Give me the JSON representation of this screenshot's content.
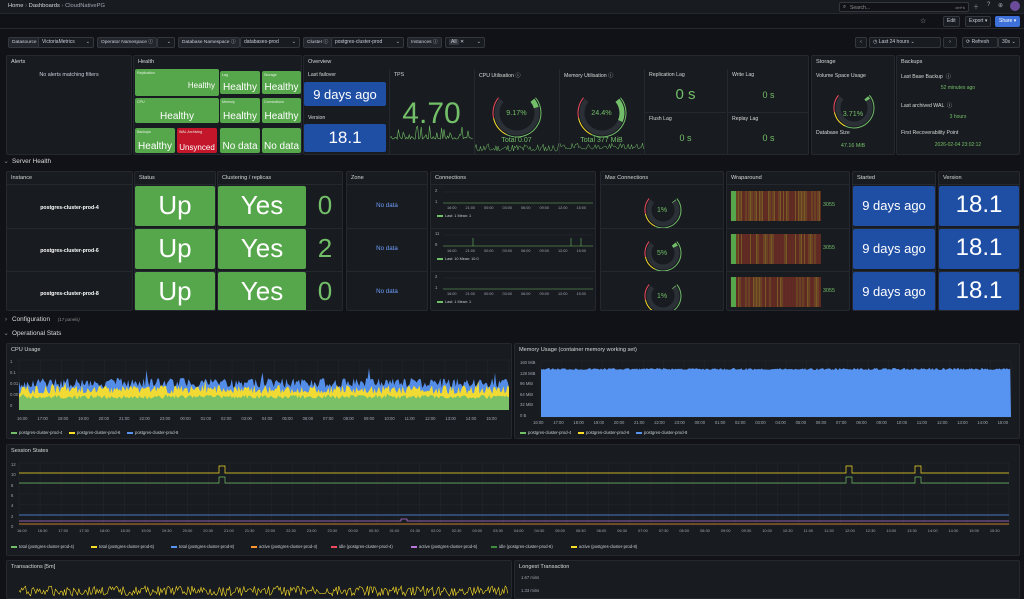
{
  "topbar": {
    "breadcrumb": [
      "Home",
      "Dashboards",
      "CloudNativePG"
    ],
    "search_placeholder": "Search...",
    "shortcut": "ctrl+k",
    "actions": {
      "edit": "Edit",
      "export": "Export",
      "share": "Share"
    }
  },
  "filters": {
    "datasource_label": "Datasource",
    "datasource_value": "VictoriaMetrics",
    "operator_ns_label": "Operator Namespace",
    "db_ns_label": "Database Namespace",
    "db_ns_value": "databases-prod",
    "cluster_label": "Cluster",
    "cluster_value": "postgres-cluster-prod",
    "instances_label": "Instances",
    "instances_value": "All",
    "time_range": "Last 24 hours",
    "refresh_label": "Refresh",
    "refresh_interval": "30s"
  },
  "alerts": {
    "title": "Alerts",
    "message": "No alerts matching filters"
  },
  "health": {
    "title": "Health",
    "tiles": [
      {
        "small": "Replication",
        "value": "Healthy",
        "color": "#56a64b"
      },
      {
        "small": "Lag",
        "value": "Healthy",
        "color": "#56a64b"
      },
      {
        "small": "Storage",
        "value": "Healthy",
        "color": "#56a64b"
      },
      {
        "small": "CPU",
        "value": "Healthy",
        "color": "#56a64b"
      },
      {
        "small": "Memory",
        "value": "Healthy",
        "color": "#56a64b"
      },
      {
        "small": "Connections",
        "value": "Healthy",
        "color": "#56a64b"
      },
      {
        "small": "Backups",
        "value": "Healthy",
        "color": "#56a64b"
      },
      {
        "small": "WAL Archiving",
        "value": "Unsynced",
        "color": "#c4162a"
      },
      {
        "small": "",
        "value": "No data",
        "color": "#56a64b"
      },
      {
        "small": "",
        "value": "No data",
        "color": "#56a64b"
      }
    ]
  },
  "overview": {
    "title": "Overview",
    "last_failover_label": "Last failover",
    "last_failover_value": "9 days ago",
    "version_label": "Version",
    "version_value": "18.1",
    "tps_label": "TPS",
    "tps_value": "4.70",
    "cpu_label": "CPU Utilisation",
    "cpu_value": "9.17%",
    "cpu_percent": 9.17,
    "cpu_total": "Total 0.07",
    "mem_label": "Memory Utilisation",
    "mem_value": "24.4%",
    "mem_percent": 24.4,
    "mem_total": "Total 377 MiB",
    "replication_lag_label": "Replication Lag",
    "replication_lag_value": "0 s",
    "write_lag_label": "Write Lag",
    "write_lag_value": "0 s",
    "flush_lag_label": "Flush Lag",
    "flush_lag_value": "0 s",
    "replay_lag_label": "Replay Lag",
    "replay_lag_value": "0 s"
  },
  "storage": {
    "title": "Storage",
    "volume_label": "Volume Space Usage",
    "volume_value": "3.71%",
    "volume_percent": 3.71,
    "db_size_label": "Database Size",
    "db_size_value": "47.16 MiB"
  },
  "backups": {
    "title": "Backups",
    "last_base_label": "Last Base Backup",
    "last_base_value": "52 minutes ago",
    "last_wal_label": "Last archived WAL",
    "last_wal_value": "3 hours",
    "recoverability_label": "First Recoverability Point",
    "recoverability_value": "2026-02-04 23:02:12"
  },
  "server_health": {
    "section_title": "Server Health",
    "columns": [
      "Instance",
      "Status",
      "Clustering / replicas",
      "Zone",
      "Connections",
      "Max Connections",
      "Wraparound",
      "Started",
      "Version"
    ],
    "rows": [
      {
        "instance": "postgres-cluster-prod-4",
        "status": "Up",
        "clustering": "Yes",
        "replicas": "0",
        "zone": "No data",
        "conn_max": "2",
        "conn_min": "1",
        "conn_legend": "Last: 1  Mean: 1",
        "max_conn": "1%",
        "max_conn_pct": 1,
        "wrap": "3055",
        "started": "9 days ago",
        "version": "18.1"
      },
      {
        "instance": "postgres-cluster-prod-6",
        "status": "Up",
        "clustering": "Yes",
        "replicas": "2",
        "zone": "No data",
        "conn_max": "11",
        "conn_min": "9",
        "conn_legend": "Last: 10  Mean: 10.0",
        "max_conn": "5%",
        "max_conn_pct": 5,
        "wrap": "3055",
        "started": "9 days ago",
        "version": "18.1"
      },
      {
        "instance": "postgres-cluster-prod-8",
        "status": "Up",
        "clustering": "Yes",
        "replicas": "0",
        "zone": "No data",
        "conn_max": "2",
        "conn_min": "1",
        "conn_legend": "Last: 1  Mean: 1",
        "max_conn": "1%",
        "max_conn_pct": 1,
        "wrap": "3055",
        "started": "9 days ago",
        "version": "18.1"
      }
    ],
    "conn_times": [
      "16:00",
      "21:00",
      "00:00",
      "03:00",
      "06:00",
      "09:00",
      "12:00",
      "15:00"
    ]
  },
  "configuration": {
    "title": "Configuration",
    "count": "(17 panels)"
  },
  "operational": {
    "title": "Operational Stats"
  },
  "cpu_usage": {
    "title": "CPU Usage",
    "y_ticks": [
      "1",
      "0.1",
      "0.01",
      "0.001",
      "0"
    ],
    "x_ticks": [
      "16:00",
      "17:00",
      "18:00",
      "19:00",
      "20:00",
      "21:00",
      "22:00",
      "23:00",
      "00:00",
      "01:00",
      "02:00",
      "03:00",
      "04:00",
      "05:00",
      "06:00",
      "07:00",
      "08:00",
      "09:00",
      "10:00",
      "11:00",
      "12:00",
      "13:00",
      "14:00",
      "15:00"
    ],
    "legend": [
      {
        "name": "postgres-cluster-prod-4",
        "color": "#73bf69"
      },
      {
        "name": "postgres-cluster-prod-6",
        "color": "#fade2a"
      },
      {
        "name": "postgres-cluster-prod-8",
        "color": "#5794f2"
      }
    ]
  },
  "memory_usage": {
    "title": "Memory Usage (container memory working set)",
    "y_ticks": [
      "160 MiB",
      "128 MiB",
      "96 MiB",
      "64 MiB",
      "32 MiB",
      "0 B"
    ],
    "x_ticks": [
      "16:00",
      "17:00",
      "18:00",
      "19:00",
      "20:00",
      "21:00",
      "22:00",
      "23:00",
      "00:00",
      "01:00",
      "02:00",
      "03:00",
      "04:00",
      "05:00",
      "06:00",
      "07:00",
      "08:00",
      "09:00",
      "10:00",
      "11:00",
      "12:00",
      "13:00",
      "14:00",
      "15:00"
    ],
    "legend": [
      {
        "name": "postgres-cluster-prod-4",
        "color": "#73bf69"
      },
      {
        "name": "postgres-cluster-prod-6",
        "color": "#fade2a"
      },
      {
        "name": "postgres-cluster-prod-8",
        "color": "#5794f2"
      }
    ]
  },
  "session_states": {
    "title": "Session States",
    "y_ticks": [
      "12",
      "10",
      "8",
      "6",
      "4",
      "2",
      "0"
    ],
    "x_ticks": [
      "16:00",
      "16:30",
      "17:00",
      "17:30",
      "18:00",
      "18:30",
      "19:00",
      "19:30",
      "20:00",
      "20:30",
      "21:00",
      "21:30",
      "22:00",
      "22:30",
      "23:00",
      "23:30",
      "00:00",
      "00:30",
      "01:00",
      "01:30",
      "02:00",
      "02:30",
      "03:00",
      "03:30",
      "04:00",
      "04:30",
      "05:00",
      "05:30",
      "06:00",
      "06:30",
      "07:00",
      "07:30",
      "08:00",
      "08:30",
      "09:00",
      "09:30",
      "10:00",
      "10:30",
      "11:00",
      "11:30",
      "12:00",
      "12:30",
      "13:00",
      "13:30",
      "14:00",
      "14:30",
      "15:00",
      "15:30"
    ],
    "legend": [
      {
        "name": "total (postgres-cluster-prod-4)",
        "color": "#73bf69"
      },
      {
        "name": "total (postgres-cluster-prod-6)",
        "color": "#fade2a"
      },
      {
        "name": "total (postgres-cluster-prod-8)",
        "color": "#5794f2"
      },
      {
        "name": "active (postgres-cluster-prod-4)",
        "color": "#ff9830"
      },
      {
        "name": "idle (postgres-cluster-prod-4)",
        "color": "#f2495c"
      },
      {
        "name": "active (postgres-cluster-prod-6)",
        "color": "#b877d9"
      },
      {
        "name": "idle (postgres-cluster-prod-6)",
        "color": "#3f8e3b"
      },
      {
        "name": "active (postgres-cluster-prod-8)",
        "color": "#fade2a"
      }
    ]
  },
  "transactions": {
    "title": "Transactions [5m]"
  },
  "longest_tx": {
    "title": "Longest Transaction",
    "y_ticks": [
      "1.67 mins",
      "1.33 mins"
    ]
  }
}
